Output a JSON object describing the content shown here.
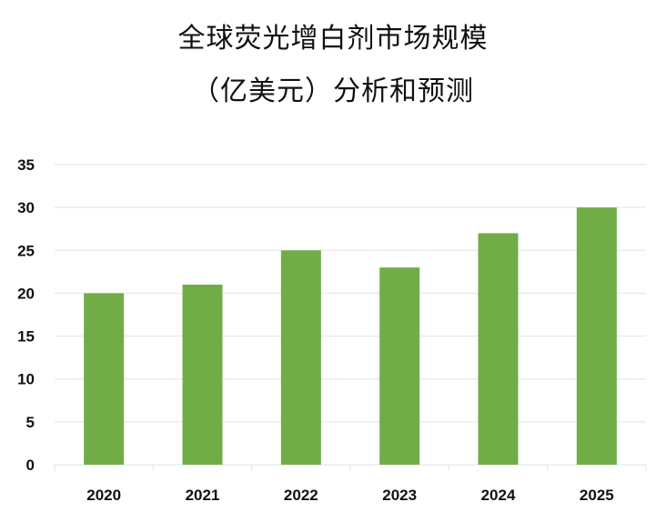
{
  "chart_data": {
    "type": "bar",
    "title_lines": [
      "全球荧光增白剂市场规模",
      "（亿美元）分析和预测"
    ],
    "categories": [
      "2020",
      "2021",
      "2022",
      "2023",
      "2024",
      "2025"
    ],
    "values": [
      20,
      21,
      25,
      23,
      27,
      30
    ],
    "ylim": [
      0,
      35
    ],
    "yticks": [
      0,
      5,
      10,
      15,
      20,
      25,
      30,
      35
    ],
    "grid": true,
    "legend": "none",
    "bar_color": "#70AD47",
    "grid_color": "#E3E3E3"
  }
}
